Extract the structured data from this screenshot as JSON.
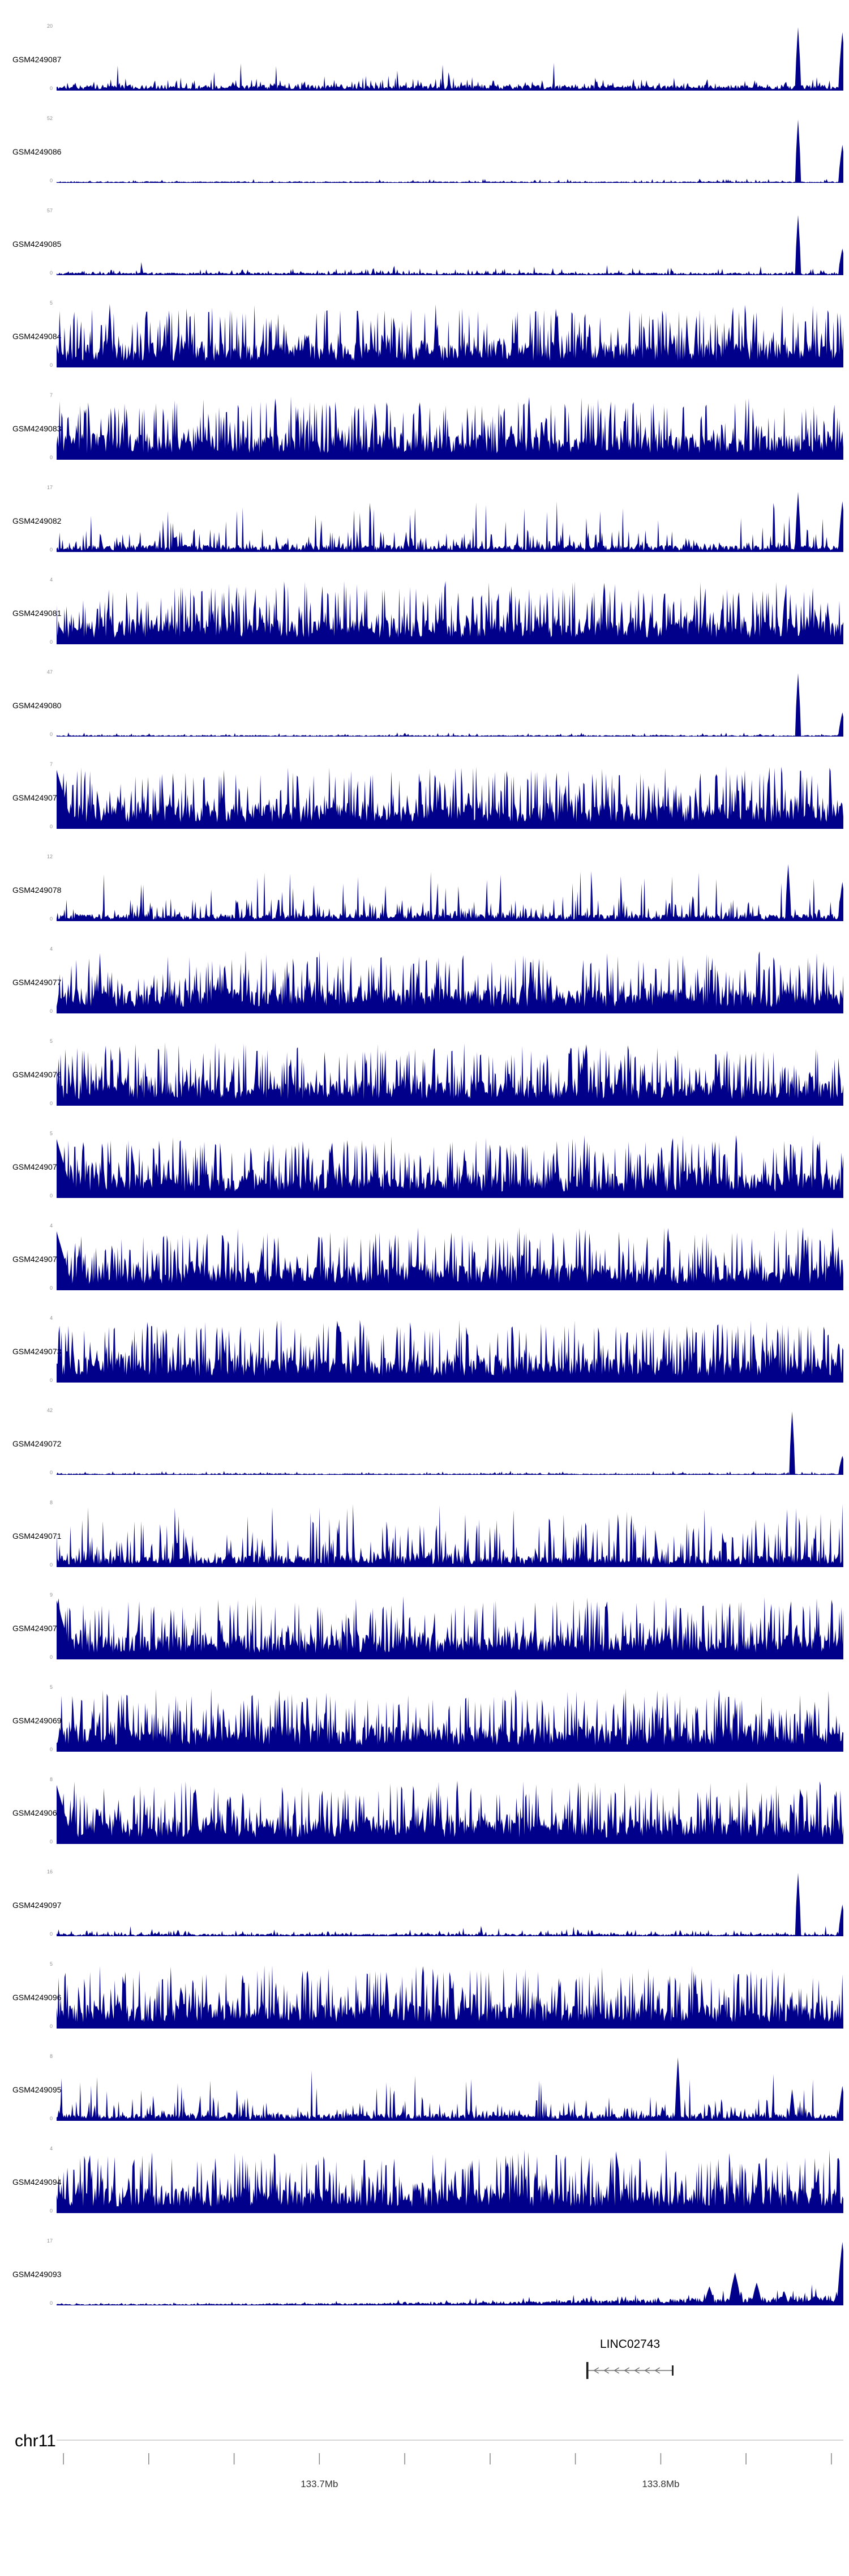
{
  "figure": {
    "background": "#ffffff",
    "signal_color": "#00008B",
    "scale_text_color": "#909090",
    "axis_line_color": "#c9c9c9",
    "tick_color": "#8c8c8c",
    "axis_label_color": "#333333",
    "gene_color": "#6e6e6e",
    "gene_bar_color": "#1a1a1a"
  },
  "chart_data": {
    "type": "area",
    "description": "Genome browser read-coverage tracks for 25 GSM samples on chr11 around the LINC02743 locus; dark-blue filled coverage histograms, each with its own y-axis maximum, above a minus-strand gene model and a genomic coordinate axis.",
    "chromosome": "chr11",
    "x_domain_mb": [
      133.623,
      133.8535
    ],
    "axis_ticks_mb": [
      133.625,
      133.65,
      133.675,
      133.7,
      133.725,
      133.75,
      133.775,
      133.8,
      133.825,
      133.85
    ],
    "axis_labels": [
      {
        "pos_mb": 133.7,
        "label": "133.7Mb"
      },
      {
        "pos_mb": 133.8,
        "label": "133.8Mb"
      }
    ],
    "gene": {
      "name": "LINC02743",
      "start_mb": 133.7785,
      "end_mb": 133.8035,
      "strand": "-"
    },
    "tracks": [
      {
        "label": "GSM4249087",
        "ymax": 20,
        "ymin": 0,
        "profile": "low",
        "wedge": false,
        "seed": 11,
        "spikes": [
          {
            "pos": 0.9427,
            "h": 1.0,
            "w": 2
          },
          {
            "pos": 0.9985,
            "h": 0.92,
            "w": 3
          }
        ]
      },
      {
        "label": "GSM4249086",
        "ymax": 52,
        "ymin": 0,
        "profile": "flat",
        "wedge": false,
        "seed": 22,
        "spikes": [
          {
            "pos": 0.9427,
            "h": 1.0,
            "w": 2
          },
          {
            "pos": 0.9985,
            "h": 0.6,
            "w": 3
          }
        ]
      },
      {
        "label": "GSM4249085",
        "ymax": 57,
        "ymin": 0,
        "profile": "flat2",
        "wedge": false,
        "seed": 33,
        "spikes": [
          {
            "pos": 0.9427,
            "h": 0.95,
            "w": 2
          },
          {
            "pos": 0.9985,
            "h": 0.42,
            "w": 3
          }
        ]
      },
      {
        "label": "GSM4249084",
        "ymax": 5,
        "ymin": 0,
        "profile": "dense",
        "wedge": false,
        "seed": 44,
        "spikes": [
          {
            "pos": 0.068,
            "h": 1.0,
            "w": 2
          }
        ]
      },
      {
        "label": "GSM4249083",
        "ymax": 7,
        "ymin": 0,
        "profile": "dense",
        "wedge": false,
        "seed": 55,
        "spikes": []
      },
      {
        "label": "GSM4249082",
        "ymax": 17,
        "ymin": 0,
        "profile": "medium",
        "wedge": false,
        "seed": 66,
        "spikes": [
          {
            "pos": 0.9427,
            "h": 0.95,
            "w": 2
          },
          {
            "pos": 0.9985,
            "h": 0.8,
            "w": 3
          }
        ]
      },
      {
        "label": "GSM4249081",
        "ymax": 4,
        "ymin": 0,
        "profile": "dense",
        "wedge": false,
        "seed": 77,
        "spikes": []
      },
      {
        "label": "GSM4249080",
        "ymax": 47,
        "ymin": 0,
        "profile": "flat",
        "wedge": false,
        "seed": 88,
        "spikes": [
          {
            "pos": 0.9427,
            "h": 1.0,
            "w": 2
          },
          {
            "pos": 0.9985,
            "h": 0.38,
            "w": 3
          }
        ]
      },
      {
        "label": "GSM4249079",
        "ymax": 7,
        "ymin": 0,
        "profile": "dense",
        "wedge": true,
        "seed": 99,
        "spikes": []
      },
      {
        "label": "GSM4249078",
        "ymax": 12,
        "ymin": 0,
        "profile": "medium",
        "wedge": false,
        "seed": 110,
        "spikes": [
          {
            "pos": 0.93,
            "h": 0.9,
            "w": 2
          },
          {
            "pos": 0.9985,
            "h": 0.62,
            "w": 3
          }
        ]
      },
      {
        "label": "GSM4249077",
        "ymax": 4,
        "ymin": 0,
        "profile": "dense",
        "wedge": false,
        "seed": 121,
        "spikes": []
      },
      {
        "label": "GSM4249076",
        "ymax": 5,
        "ymin": 0,
        "profile": "dense",
        "wedge": false,
        "seed": 132,
        "spikes": []
      },
      {
        "label": "GSM4249075",
        "ymax": 5,
        "ymin": 0,
        "profile": "dense",
        "wedge": true,
        "seed": 143,
        "spikes": []
      },
      {
        "label": "GSM4249074",
        "ymax": 4,
        "ymin": 0,
        "profile": "dense",
        "wedge": true,
        "seed": 154,
        "spikes": []
      },
      {
        "label": "GSM4249073",
        "ymax": 4,
        "ymin": 0,
        "profile": "dense",
        "wedge": false,
        "seed": 165,
        "spikes": []
      },
      {
        "label": "GSM4249072",
        "ymax": 42,
        "ymin": 0,
        "profile": "flat",
        "wedge": false,
        "seed": 176,
        "spikes": [
          {
            "pos": 0.935,
            "h": 1.0,
            "w": 2
          },
          {
            "pos": 0.9985,
            "h": 0.3,
            "w": 3
          }
        ]
      },
      {
        "label": "GSM4249071",
        "ymax": 8,
        "ymin": 0,
        "profile": "dense-sparse",
        "wedge": false,
        "seed": 187,
        "spikes": []
      },
      {
        "label": "GSM4249070",
        "ymax": 9,
        "ymin": 0,
        "profile": "dense",
        "wedge": true,
        "seed": 198,
        "spikes": []
      },
      {
        "label": "GSM4249069",
        "ymax": 5,
        "ymin": 0,
        "profile": "dense",
        "wedge": false,
        "seed": 209,
        "spikes": []
      },
      {
        "label": "GSM4249068",
        "ymax": 8,
        "ymin": 0,
        "profile": "dense",
        "wedge": true,
        "seed": 220,
        "spikes": []
      },
      {
        "label": "GSM4249097",
        "ymax": 16,
        "ymin": 0,
        "profile": "flat2",
        "wedge": false,
        "seed": 231,
        "spikes": [
          {
            "pos": 0.9427,
            "h": 1.0,
            "w": 2
          },
          {
            "pos": 0.9985,
            "h": 0.5,
            "w": 3
          }
        ]
      },
      {
        "label": "GSM4249096",
        "ymax": 5,
        "ymin": 0,
        "profile": "dense",
        "wedge": false,
        "seed": 242,
        "spikes": []
      },
      {
        "label": "GSM4249095",
        "ymax": 8,
        "ymin": 0,
        "profile": "medium",
        "wedge": false,
        "seed": 253,
        "spikes": [
          {
            "pos": 0.79,
            "h": 1.0,
            "w": 2
          },
          {
            "pos": 0.935,
            "h": 0.5,
            "w": 2
          },
          {
            "pos": 0.9985,
            "h": 0.55,
            "w": 3
          }
        ]
      },
      {
        "label": "GSM4249094",
        "ymax": 4,
        "ymin": 0,
        "profile": "dense",
        "wedge": false,
        "seed": 264,
        "spikes": []
      },
      {
        "label": "GSM4249093",
        "ymax": 17,
        "ymin": 0,
        "profile": "low-rising",
        "wedge": false,
        "seed": 275,
        "spikes": [
          {
            "pos": 0.83,
            "h": 0.3,
            "w": 4
          },
          {
            "pos": 0.862,
            "h": 0.52,
            "w": 5
          },
          {
            "pos": 0.89,
            "h": 0.36,
            "w": 4
          },
          {
            "pos": 0.925,
            "h": 0.22,
            "w": 3
          },
          {
            "pos": 0.9985,
            "h": 1.0,
            "w": 4
          }
        ]
      }
    ]
  }
}
